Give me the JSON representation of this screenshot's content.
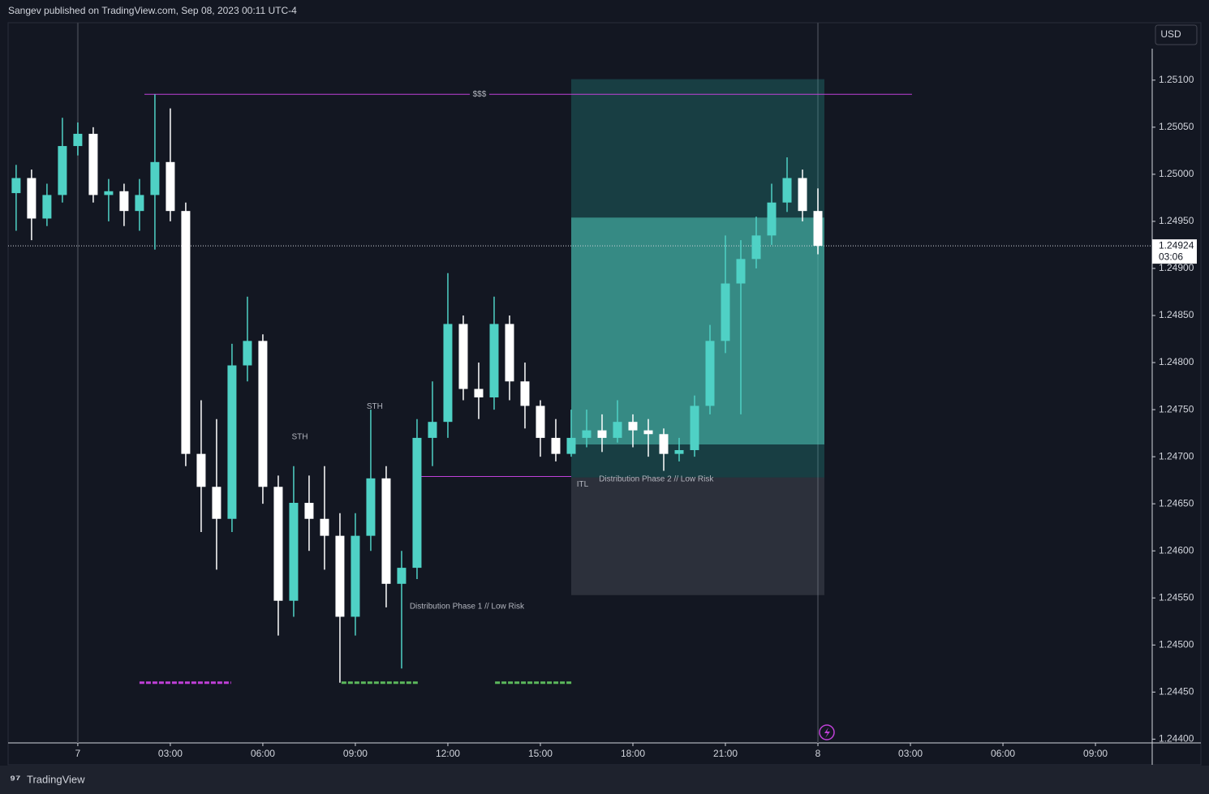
{
  "header": "Sangev published on TradingView.com, Sep 08, 2023 00:11 UTC-4",
  "footer": "TradingView",
  "chart_data": {
    "type": "candlestick",
    "currency": "USD",
    "up_color": "#4fd1c5",
    "down_color": "#ffffff",
    "x": [
      -2,
      -1.5,
      -1,
      -0.5,
      0,
      0.5,
      1,
      1.5,
      2,
      2.5,
      3,
      3.5,
      4,
      4.5,
      5,
      5.5,
      6,
      6.5,
      7,
      7.5,
      8,
      8.5,
      9,
      9.5,
      10,
      10.5,
      11,
      11.5,
      12,
      12.5,
      13,
      13.5,
      14,
      14.5,
      15,
      15.5,
      16,
      16.5,
      17,
      17.5,
      18,
      18.5,
      19,
      19.5,
      20,
      20.5,
      21,
      21.5,
      22,
      22.5,
      23,
      23.5,
      24
    ],
    "open": [
      1.2498,
      1.24996,
      1.24953,
      1.24978,
      1.2503,
      1.25043,
      1.24978,
      1.24982,
      1.24961,
      1.24978,
      1.25013,
      1.24961,
      1.24703,
      1.24668,
      1.24634,
      1.24797,
      1.24823,
      1.24668,
      1.24547,
      1.24651,
      1.24634,
      1.24616,
      1.2453,
      1.24616,
      1.24677,
      1.24565,
      1.24582,
      1.2472,
      1.24737,
      1.24841,
      1.24772,
      1.24763,
      1.24841,
      1.2478,
      1.24754,
      1.2472,
      1.24703,
      1.2472,
      1.24728,
      1.2472,
      1.24737,
      1.24728,
      1.24724,
      1.24703,
      1.24707,
      1.24754,
      1.24823,
      1.24884,
      1.2491,
      1.24935,
      1.2497,
      1.24996,
      1.24961
    ],
    "high": [
      1.2501,
      1.25005,
      1.2499,
      1.2506,
      1.25055,
      1.2505,
      1.24995,
      1.2499,
      1.24995,
      1.25085,
      1.2507,
      1.2497,
      1.2476,
      1.2474,
      1.2482,
      1.2487,
      1.2483,
      1.2468,
      1.2469,
      1.2468,
      1.2469,
      1.2464,
      1.2464,
      1.2475,
      1.2469,
      1.246,
      1.2474,
      1.2478,
      1.24895,
      1.2485,
      1.248,
      1.2487,
      1.2485,
      1.248,
      1.2476,
      1.2474,
      1.2475,
      1.2475,
      1.24745,
      1.2476,
      1.24745,
      1.2474,
      1.2473,
      1.2472,
      1.24765,
      1.2484,
      1.24935,
      1.2493,
      1.24955,
      1.2499,
      1.25018,
      1.25005,
      1.24985
    ],
    "low": [
      1.2494,
      1.2493,
      1.24945,
      1.2497,
      1.2502,
      1.2497,
      1.2495,
      1.24945,
      1.2494,
      1.2492,
      1.2495,
      1.2469,
      1.2462,
      1.2458,
      1.2462,
      1.2478,
      1.2465,
      1.2451,
      1.2453,
      1.246,
      1.2458,
      1.2446,
      1.2451,
      1.246,
      1.2454,
      1.24475,
      1.2457,
      1.2469,
      1.2472,
      1.2476,
      1.2474,
      1.2475,
      1.2476,
      1.2473,
      1.247,
      1.24695,
      1.247,
      1.2471,
      1.24705,
      1.24715,
      1.2471,
      1.247,
      1.24685,
      1.24695,
      1.247,
      1.24745,
      1.2481,
      1.24745,
      1.249,
      1.24925,
      1.2496,
      1.2495,
      1.24915
    ],
    "close": [
      1.24996,
      1.24953,
      1.24978,
      1.2503,
      1.25043,
      1.24978,
      1.24982,
      1.24961,
      1.24978,
      1.25013,
      1.24961,
      1.24703,
      1.24668,
      1.24634,
      1.24797,
      1.24823,
      1.24668,
      1.24547,
      1.24651,
      1.24634,
      1.24616,
      1.2453,
      1.24616,
      1.24677,
      1.24565,
      1.24582,
      1.2472,
      1.24737,
      1.24841,
      1.24772,
      1.24763,
      1.24841,
      1.2478,
      1.24754,
      1.2472,
      1.24703,
      1.2472,
      1.24728,
      1.2472,
      1.24737,
      1.24728,
      1.24724,
      1.24703,
      1.24707,
      1.24754,
      1.24823,
      1.24884,
      1.2491,
      1.24935,
      1.2497,
      1.24996,
      1.24961,
      1.24924
    ],
    "last_price": {
      "value": 1.24924,
      "label": "1.24924",
      "countdown": "03:06"
    },
    "xlim": [
      -2.26,
      34.84
    ],
    "ylim": [
      1.24396,
      1.25161
    ],
    "xticks": [
      {
        "value": 0,
        "label": "7"
      },
      {
        "value": 3,
        "label": "03:00"
      },
      {
        "value": 6,
        "label": "06:00"
      },
      {
        "value": 9,
        "label": "09:00"
      },
      {
        "value": 12,
        "label": "12:00"
      },
      {
        "value": 15,
        "label": "15:00"
      },
      {
        "value": 18,
        "label": "18:00"
      },
      {
        "value": 21,
        "label": "21:00"
      },
      {
        "value": 24,
        "label": "8"
      },
      {
        "value": 27,
        "label": "03:00"
      },
      {
        "value": 30,
        "label": "06:00"
      },
      {
        "value": 33,
        "label": "09:00"
      }
    ],
    "yticks": [
      {
        "value": 1.251,
        "label": "1.25100"
      },
      {
        "value": 1.2505,
        "label": "1.25050"
      },
      {
        "value": 1.25,
        "label": "1.25000"
      },
      {
        "value": 1.2495,
        "label": "1.24950"
      },
      {
        "value": 1.249,
        "label": "1.24900"
      },
      {
        "value": 1.2485,
        "label": "1.24850"
      },
      {
        "value": 1.248,
        "label": "1.24800"
      },
      {
        "value": 1.2475,
        "label": "1.24750"
      },
      {
        "value": 1.247,
        "label": "1.24700"
      },
      {
        "value": 1.2465,
        "label": "1.24650"
      },
      {
        "value": 1.246,
        "label": "1.24600"
      },
      {
        "value": 1.2455,
        "label": "1.24550"
      },
      {
        "value": 1.245,
        "label": "1.24500"
      },
      {
        "value": 1.2445,
        "label": "1.24450"
      },
      {
        "value": 1.244,
        "label": "1.24400"
      }
    ],
    "session_breaks": [
      0,
      24
    ],
    "position": {
      "start": 16.0,
      "end": 24.21,
      "target": 1.25101,
      "entry": 1.24678,
      "stop": 1.24553,
      "fill_top": 1.24954,
      "fill_bottom": 1.24713
    },
    "levels": [
      {
        "label": "$$$",
        "price": 1.25085,
        "start": 2.16,
        "end": 27.05,
        "color": "#c040d8"
      },
      {
        "label": "ITL",
        "price": 1.24679,
        "start": 10.9,
        "end": 16.0,
        "color": "#c040d8"
      }
    ],
    "markers": [
      {
        "price": 1.2446,
        "start": 2.0,
        "end": 4.97,
        "color": "#c040d8"
      },
      {
        "price": 1.2446,
        "start": 8.55,
        "end": 11.03,
        "color": "#5cb85c"
      },
      {
        "price": 1.2446,
        "start": 13.53,
        "end": 16.05,
        "color": "#5cb85c"
      }
    ],
    "annotations": [
      {
        "text": "STH",
        "time": 7.2,
        "price": 1.24721
      },
      {
        "text": "STH",
        "time": 9.63,
        "price": 1.24753
      },
      {
        "text": "Distribution Phase 1 // Low Risk",
        "time": 10.76,
        "price": 1.24541
      },
      {
        "text": "Distribution Phase 2 // Low Risk",
        "time": 16.9,
        "price": 1.24676
      }
    ]
  }
}
